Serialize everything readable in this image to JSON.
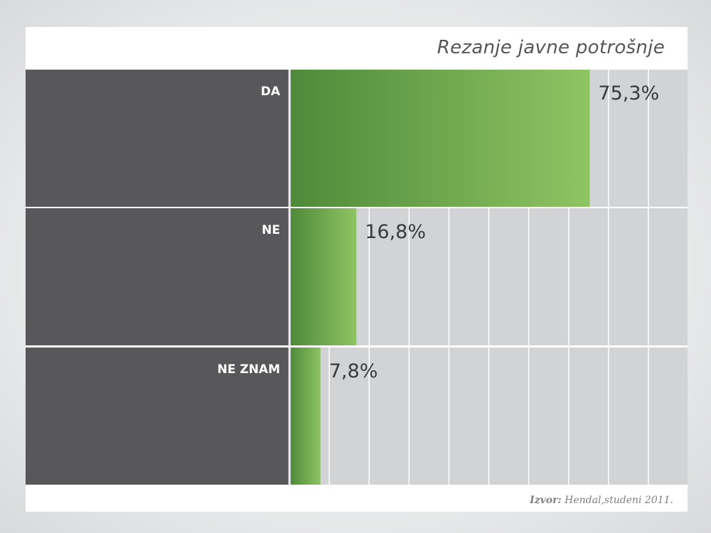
{
  "chart_data": {
    "type": "bar",
    "orientation": "horizontal",
    "title": "Rezanje javne potrošnje",
    "categories": [
      "DA",
      "NE",
      "NE ZNAM"
    ],
    "values": [
      75.3,
      16.8,
      7.8
    ],
    "value_labels": [
      "75,3%",
      "16,8%",
      "7,8%"
    ],
    "xlim": [
      0,
      100
    ],
    "grid": true
  },
  "source": {
    "label": "Izvor:",
    "text": "Hendal,studeni 2011."
  },
  "colors": {
    "label_panel": "#58585a",
    "plot_bg": "#d1d3d4",
    "grid": "#ffffff",
    "bar_dark": "#4e8a3a",
    "bar_light": "#8fc463",
    "value_text": "#3a3a3c"
  }
}
